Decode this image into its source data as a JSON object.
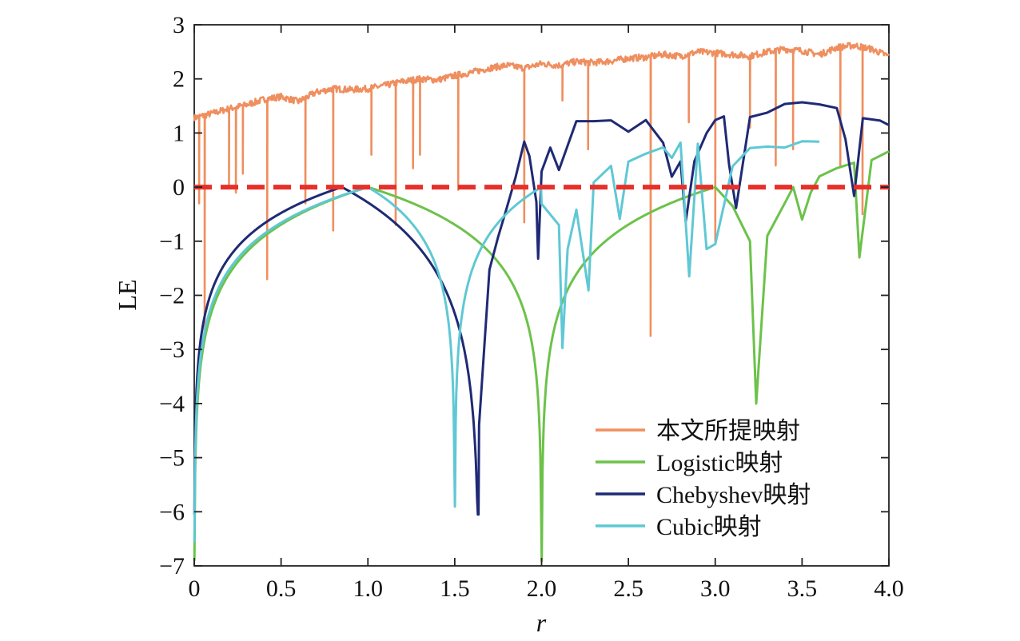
{
  "chart_data": {
    "type": "line",
    "xlabel": "r",
    "ylabel": "LE",
    "xlim": [
      0,
      4
    ],
    "ylim": [
      -7,
      3
    ],
    "xticks": [
      "0",
      "0.5",
      "1.0",
      "1.5",
      "2.0",
      "2.5",
      "3.0",
      "3.5",
      "4.0"
    ],
    "xtick_values": [
      0,
      0.5,
      1,
      1.5,
      2,
      2.5,
      3,
      3.5,
      4
    ],
    "yticks": [
      "3",
      "2",
      "1",
      "0",
      "−1",
      "−2",
      "−3",
      "−4",
      "−5",
      "−6",
      "−7"
    ],
    "ytick_values": [
      3,
      2,
      1,
      0,
      -1,
      -2,
      -3,
      -4,
      -5,
      -6,
      -7
    ],
    "grid": false,
    "legend_position": "lower-right",
    "reference_line": {
      "y": 0,
      "style": "dashed",
      "color": "#e8302a"
    },
    "series": [
      {
        "name": "本文所提映射",
        "color": "#ef8f5f",
        "points": [
          [
            0,
            1.28
          ],
          [
            0.1,
            1.36
          ],
          [
            0.2,
            1.45
          ],
          [
            0.3,
            1.52
          ],
          [
            0.4,
            1.62
          ],
          [
            0.5,
            1.67
          ],
          [
            0.6,
            1.58
          ],
          [
            0.7,
            1.75
          ],
          [
            0.8,
            1.82
          ],
          [
            0.9,
            1.8
          ],
          [
            1.0,
            1.82
          ],
          [
            1.1,
            1.88
          ],
          [
            1.2,
            1.95
          ],
          [
            1.3,
            2.0
          ],
          [
            1.4,
            1.98
          ],
          [
            1.5,
            2.06
          ],
          [
            1.6,
            2.12
          ],
          [
            1.7,
            2.2
          ],
          [
            1.8,
            2.25
          ],
          [
            1.9,
            2.2
          ],
          [
            2.0,
            2.28
          ],
          [
            2.1,
            2.25
          ],
          [
            2.2,
            2.32
          ],
          [
            2.3,
            2.3
          ],
          [
            2.4,
            2.33
          ],
          [
            2.5,
            2.38
          ],
          [
            2.6,
            2.4
          ],
          [
            2.7,
            2.45
          ],
          [
            2.8,
            2.42
          ],
          [
            2.9,
            2.5
          ],
          [
            3.0,
            2.48
          ],
          [
            3.1,
            2.45
          ],
          [
            3.2,
            2.42
          ],
          [
            3.3,
            2.5
          ],
          [
            3.4,
            2.55
          ],
          [
            3.5,
            2.52
          ],
          [
            3.6,
            2.45
          ],
          [
            3.7,
            2.58
          ],
          [
            3.8,
            2.62
          ],
          [
            3.9,
            2.55
          ],
          [
            4.0,
            2.42
          ]
        ],
        "dips": [
          [
            0.03,
            -0.3
          ],
          [
            0.06,
            -2.7
          ],
          [
            0.2,
            0.05
          ],
          [
            0.24,
            -0.1
          ],
          [
            0.28,
            0.25
          ],
          [
            0.42,
            -1.7
          ],
          [
            0.64,
            -0.3
          ],
          [
            0.8,
            -0.8
          ],
          [
            1.02,
            0.6
          ],
          [
            1.16,
            -0.7
          ],
          [
            1.26,
            0.35
          ],
          [
            1.3,
            0.6
          ],
          [
            1.52,
            -0.05
          ],
          [
            1.9,
            -0.65
          ],
          [
            2.12,
            1.6
          ],
          [
            2.27,
            0.7
          ],
          [
            2.63,
            -2.75
          ],
          [
            2.85,
            1.2
          ],
          [
            3.0,
            -1.0
          ],
          [
            3.2,
            1.1
          ],
          [
            3.35,
            0.4
          ],
          [
            3.45,
            0.7
          ],
          [
            3.72,
            0.4
          ],
          [
            3.85,
            -0.5
          ]
        ]
      },
      {
        "name": "Logistic映射",
        "color": "#6cc24a",
        "points": [
          [
            3.0,
            0.0
          ],
          [
            3.1,
            -0.35
          ],
          [
            3.2,
            -1.0
          ],
          [
            3.236,
            -4.0
          ],
          [
            3.3,
            -0.9
          ],
          [
            3.4,
            -0.3
          ],
          [
            3.449,
            0.0
          ],
          [
            3.5,
            -0.6
          ],
          [
            3.55,
            -0.1
          ],
          [
            3.6,
            0.2
          ],
          [
            3.7,
            0.35
          ],
          [
            3.8,
            0.45
          ],
          [
            3.83,
            -1.3
          ],
          [
            3.9,
            0.5
          ],
          [
            4.0,
            0.66
          ]
        ]
      },
      {
        "name": "Chebyshev映射",
        "color": "#1f2a75",
        "points": [
          [
            1.7,
            -1.5
          ],
          [
            1.75,
            -0.95
          ],
          [
            1.8,
            -0.4
          ],
          [
            1.85,
            0.2
          ],
          [
            1.9,
            0.85
          ],
          [
            1.93,
            0.6
          ],
          [
            1.97,
            -0.3
          ],
          [
            1.98,
            -1.3
          ],
          [
            2.0,
            0.3
          ],
          [
            2.05,
            0.7
          ],
          [
            2.1,
            0.3
          ],
          [
            2.2,
            1.2
          ],
          [
            2.3,
            1.25
          ],
          [
            2.4,
            1.22
          ],
          [
            2.5,
            1.0
          ],
          [
            2.6,
            1.28
          ],
          [
            2.7,
            0.8
          ],
          [
            2.75,
            0.2
          ],
          [
            2.8,
            0.5
          ],
          [
            2.83,
            -0.6
          ],
          [
            2.88,
            0.5
          ],
          [
            2.95,
            1.0
          ],
          [
            3.0,
            1.2
          ],
          [
            3.05,
            1.3
          ],
          [
            3.08,
            0.4
          ],
          [
            3.12,
            -0.35
          ],
          [
            3.2,
            1.3
          ],
          [
            3.3,
            1.4
          ],
          [
            3.4,
            1.5
          ],
          [
            3.5,
            1.6
          ],
          [
            3.6,
            1.55
          ],
          [
            3.7,
            1.45
          ],
          [
            3.75,
            0.9
          ],
          [
            3.8,
            -0.2
          ],
          [
            3.85,
            1.3
          ],
          [
            3.95,
            1.25
          ],
          [
            4.0,
            1.12
          ]
        ]
      },
      {
        "name": "Cubic映射",
        "color": "#5fc8d4",
        "points": [
          [
            2.0,
            -0.3
          ],
          [
            2.1,
            -0.75
          ],
          [
            2.12,
            -2.95
          ],
          [
            2.15,
            -1.1
          ],
          [
            2.2,
            -0.45
          ],
          [
            2.27,
            -1.9
          ],
          [
            2.3,
            0.1
          ],
          [
            2.4,
            0.35
          ],
          [
            2.45,
            -0.6
          ],
          [
            2.5,
            0.45
          ],
          [
            2.6,
            0.6
          ],
          [
            2.7,
            0.75
          ],
          [
            2.75,
            0.5
          ],
          [
            2.8,
            0.8
          ],
          [
            2.85,
            -1.6
          ],
          [
            2.9,
            0.8
          ],
          [
            2.95,
            -1.1
          ],
          [
            3.0,
            -1.05
          ],
          [
            3.1,
            0.4
          ],
          [
            3.2,
            0.7
          ],
          [
            3.3,
            0.75
          ],
          [
            3.4,
            0.78
          ],
          [
            3.5,
            0.8
          ],
          [
            3.6,
            0.8
          ]
        ]
      }
    ]
  }
}
